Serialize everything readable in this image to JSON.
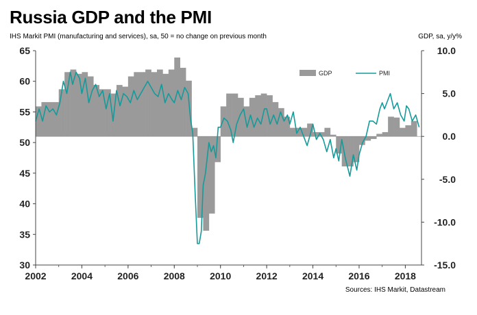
{
  "title": "Russia GDP and the PMI",
  "subtitle": "IHS Markit PMI (manufacturing and services), sa, 50 = no change on previous month",
  "right_axis_label": "GDP,  sa, y/y%",
  "source": "Sources: IHS Markit, Datastream",
  "chart_data": {
    "type": "bar+line",
    "title": "Russia GDP and the PMI",
    "legend_position": "top-right",
    "x_axis": {
      "range": [
        2002,
        2018.7
      ],
      "tick_labels": [
        "2002",
        "2004",
        "2006",
        "2008",
        "2010",
        "2012",
        "2014",
        "2016",
        "2018"
      ],
      "tick_values": [
        2002,
        2004,
        2006,
        2008,
        2010,
        2012,
        2014,
        2016,
        2018
      ]
    },
    "y_left": {
      "label": "IHS Markit PMI (manufacturing and services), sa, 50 = no change on previous month",
      "range": [
        30,
        65
      ],
      "tick_labels": [
        "30",
        "35",
        "40",
        "45",
        "50",
        "55",
        "60",
        "65"
      ]
    },
    "y_right": {
      "label": "GDP,  sa, y/y%",
      "range": [
        -15,
        10
      ],
      "tick_labels": [
        "-15.0",
        "-10.0",
        "-5.0",
        "0.0",
        "5.0",
        "10.0"
      ]
    },
    "series": [
      {
        "name": "GDP",
        "type": "bar",
        "axis": "right",
        "color": "#9a9a9a",
        "x": [
          2002.0,
          2002.25,
          2002.5,
          2002.75,
          2003.0,
          2003.25,
          2003.5,
          2003.75,
          2004.0,
          2004.25,
          2004.5,
          2004.75,
          2005.0,
          2005.25,
          2005.5,
          2005.75,
          2006.0,
          2006.25,
          2006.5,
          2006.75,
          2007.0,
          2007.25,
          2007.5,
          2007.75,
          2008.0,
          2008.25,
          2008.5,
          2008.75,
          2009.0,
          2009.25,
          2009.5,
          2009.75,
          2010.0,
          2010.25,
          2010.5,
          2010.75,
          2011.0,
          2011.25,
          2011.5,
          2011.75,
          2012.0,
          2012.25,
          2012.5,
          2012.75,
          2013.0,
          2013.25,
          2013.5,
          2013.75,
          2014.0,
          2014.25,
          2014.5,
          2014.75,
          2015.0,
          2015.25,
          2015.5,
          2015.75,
          2016.0,
          2016.25,
          2016.5,
          2016.75,
          2017.0,
          2017.25,
          2017.5,
          2017.75,
          2018.0,
          2018.25
        ],
        "values": [
          3.5,
          4.0,
          4.0,
          4.0,
          5.5,
          7.5,
          7.8,
          7.3,
          7.5,
          7.0,
          6.0,
          5.5,
          5.5,
          5.0,
          6.0,
          5.8,
          7.0,
          7.5,
          7.5,
          7.8,
          7.5,
          7.8,
          7.3,
          7.8,
          9.2,
          8.0,
          6.5,
          1.0,
          -9.5,
          -11.0,
          -9.0,
          -3.0,
          3.5,
          5.0,
          5.0,
          4.5,
          3.5,
          4.5,
          4.8,
          5.0,
          4.8,
          4.0,
          3.3,
          2.3,
          1.0,
          1.0,
          1.0,
          1.5,
          0.5,
          0.5,
          1.0,
          0.2,
          -2.0,
          -3.5,
          -3.5,
          -3.0,
          -1.0,
          -0.5,
          -0.3,
          0.3,
          0.5,
          2.3,
          2.2,
          1.0,
          1.3,
          1.8
        ]
      },
      {
        "name": "PMI",
        "type": "line",
        "axis": "left",
        "color": "#159a9a",
        "x": [
          2002.0,
          2002.15,
          2002.3,
          2002.45,
          2002.6,
          2002.75,
          2002.9,
          2003.05,
          2003.2,
          2003.35,
          2003.5,
          2003.6,
          2003.75,
          2003.9,
          2004.0,
          2004.15,
          2004.3,
          2004.45,
          2004.6,
          2004.75,
          2004.9,
          2005.05,
          2005.2,
          2005.35,
          2005.5,
          2005.65,
          2005.8,
          2005.95,
          2006.1,
          2006.25,
          2006.4,
          2006.55,
          2006.7,
          2006.85,
          2007.0,
          2007.15,
          2007.3,
          2007.45,
          2007.6,
          2007.75,
          2007.9,
          2008.0,
          2008.15,
          2008.3,
          2008.45,
          2008.6,
          2008.7,
          2008.8,
          2008.9,
          2009.0,
          2009.08,
          2009.17,
          2009.25,
          2009.35,
          2009.5,
          2009.6,
          2009.7,
          2009.8,
          2009.9,
          2010.0,
          2010.15,
          2010.3,
          2010.45,
          2010.55,
          2010.7,
          2010.85,
          2011.0,
          2011.15,
          2011.3,
          2011.45,
          2011.6,
          2011.75,
          2011.9,
          2012.0,
          2012.15,
          2012.3,
          2012.45,
          2012.6,
          2012.75,
          2012.9,
          2013.0,
          2013.15,
          2013.3,
          2013.45,
          2013.6,
          2013.75,
          2013.9,
          2014.0,
          2014.15,
          2014.3,
          2014.45,
          2014.6,
          2014.75,
          2014.9,
          2015.0,
          2015.12,
          2015.25,
          2015.4,
          2015.5,
          2015.6,
          2015.75,
          2015.9,
          2016.0,
          2016.15,
          2016.3,
          2016.45,
          2016.6,
          2016.75,
          2016.9,
          2017.0,
          2017.1,
          2017.2,
          2017.35,
          2017.5,
          2017.65,
          2017.8,
          2017.95,
          2018.05,
          2018.15,
          2018.3,
          2018.45,
          2018.6
        ],
        "values": [
          53.5,
          55.5,
          53.5,
          56.0,
          55.0,
          55.5,
          54.5,
          56.5,
          60.0,
          58.0,
          61.5,
          59.5,
          61.5,
          60.5,
          58.0,
          60.5,
          56.5,
          58.5,
          59.5,
          57.5,
          58.5,
          55.5,
          58.0,
          53.5,
          58.5,
          56.0,
          58.0,
          57.5,
          56.5,
          58.5,
          57.0,
          58.0,
          59.0,
          60.0,
          59.0,
          58.0,
          57.5,
          59.5,
          56.5,
          58.0,
          57.0,
          56.5,
          58.5,
          57.0,
          59.0,
          58.0,
          54.0,
          51.5,
          42.0,
          33.5,
          33.5,
          35.5,
          43.0,
          45.0,
          50.0,
          48.5,
          49.5,
          47.5,
          52.5,
          52.5,
          54.0,
          53.5,
          52.0,
          50.0,
          53.0,
          54.5,
          55.5,
          52.5,
          54.5,
          52.5,
          54.0,
          53.0,
          55.5,
          55.5,
          53.0,
          54.5,
          53.0,
          55.0,
          53.5,
          54.5,
          53.0,
          55.0,
          51.5,
          52.5,
          51.0,
          49.5,
          51.5,
          53.0,
          50.5,
          51.5,
          50.5,
          48.5,
          50.5,
          47.5,
          49.0,
          47.0,
          50.5,
          47.5,
          46.0,
          44.5,
          48.0,
          45.5,
          48.0,
          50.0,
          51.0,
          53.5,
          53.5,
          53.0,
          55.5,
          56.5,
          55.5,
          56.5,
          58.0,
          55.5,
          56.5,
          54.5,
          53.5,
          56.0,
          55.5,
          53.5,
          54.5,
          52.5
        ]
      }
    ]
  }
}
